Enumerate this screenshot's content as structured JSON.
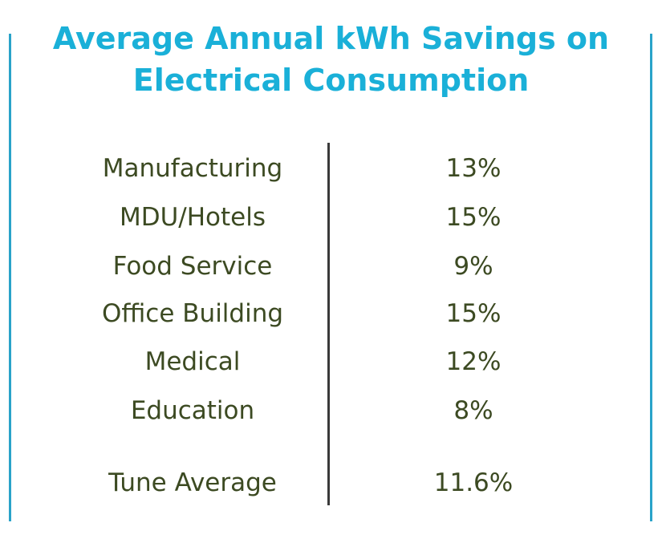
{
  "chart_data": {
    "type": "table",
    "title_lines": [
      "Average Annual kWh Savings on",
      "Electrical Consumption"
    ],
    "rows": [
      {
        "category": "Manufacturing",
        "value": "13%"
      },
      {
        "category": "MDU/Hotels",
        "value": "15%"
      },
      {
        "category": "Food Service",
        "value": "9%"
      },
      {
        "category": "Office Building",
        "value": "15%"
      },
      {
        "category": "Medical",
        "value": "12%"
      },
      {
        "category": "Education",
        "value": "8%"
      }
    ],
    "summary": {
      "category": "Tune Average",
      "value": "11.6%"
    }
  },
  "colors": {
    "title": "#1ab0d8",
    "text": "#3c4a22",
    "edge_lines": "#2aa3c9",
    "divider": "#3a3a3a"
  }
}
